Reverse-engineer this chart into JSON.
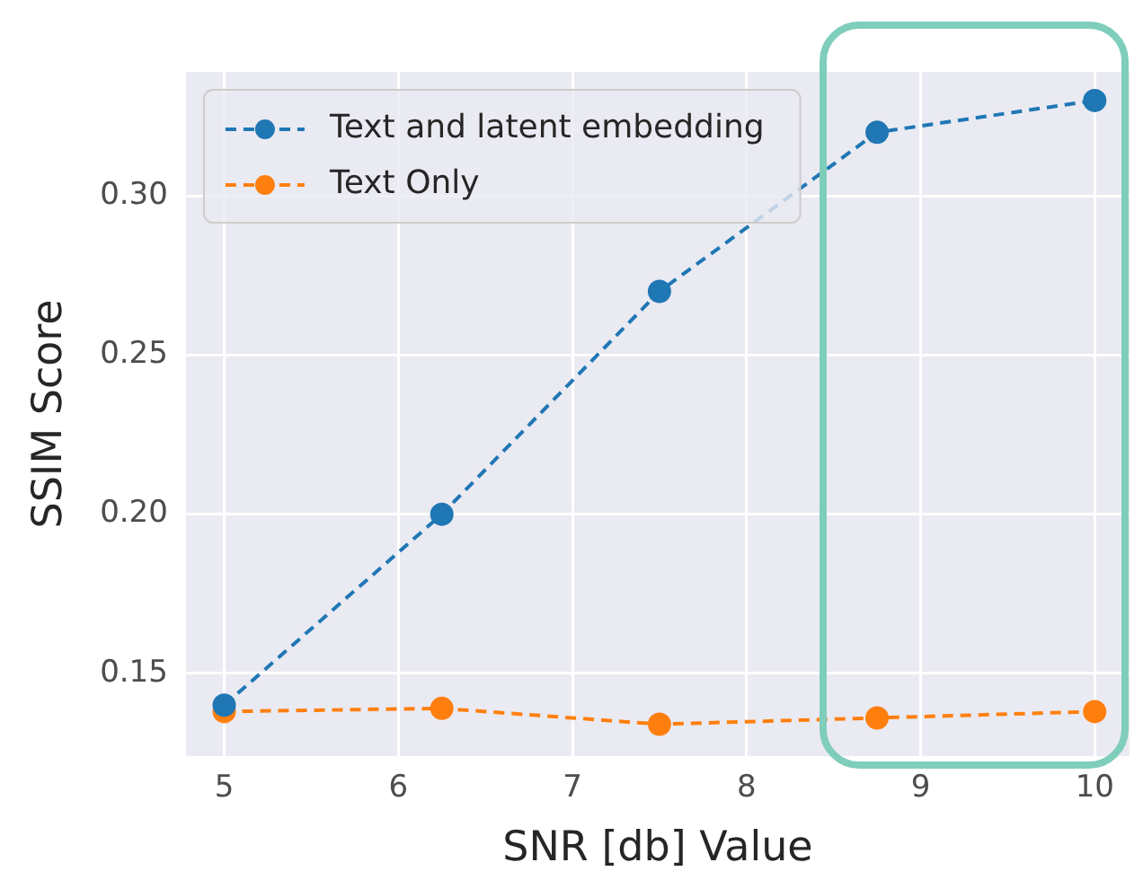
{
  "chart_data": {
    "type": "line",
    "xlabel": "SNR [db] Value",
    "ylabel": "SSIM Score",
    "x": [
      5,
      6.25,
      7.5,
      8.75,
      10
    ],
    "series": [
      {
        "name": "Text and latent embedding",
        "color": "#1f77b4",
        "values": [
          0.14,
          0.2,
          0.27,
          0.32,
          0.33
        ]
      },
      {
        "name": "Text Only",
        "color": "#ff7f0e",
        "values": [
          0.138,
          0.139,
          0.134,
          0.136,
          0.138
        ]
      }
    ],
    "xlim": [
      4.78,
      10.2
    ],
    "xticks": [
      5,
      6,
      7,
      8,
      9,
      10
    ],
    "ylim": [
      0.124,
      0.339
    ],
    "yticks": [
      0.15,
      {
        "value": 0.2,
        "label": "0.20"
      },
      0.25,
      {
        "value": 0.3,
        "label": "0.30"
      }
    ],
    "grid": true,
    "legend": "top left",
    "marker": "circle",
    "line_style": "dashed"
  }
}
